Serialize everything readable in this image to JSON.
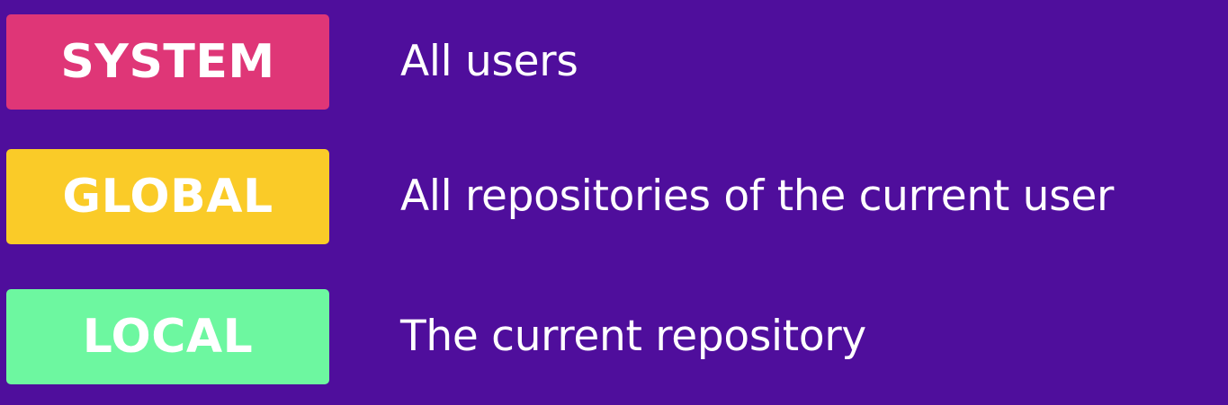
{
  "levels": [
    {
      "label": "SYSTEM",
      "description": "All users",
      "color": "#df3677"
    },
    {
      "label": "GLOBAL",
      "description": "All repositories of the current user",
      "color": "#facb28"
    },
    {
      "label": "LOCAL",
      "description": "The current repository",
      "color": "#6df7a0"
    }
  ]
}
